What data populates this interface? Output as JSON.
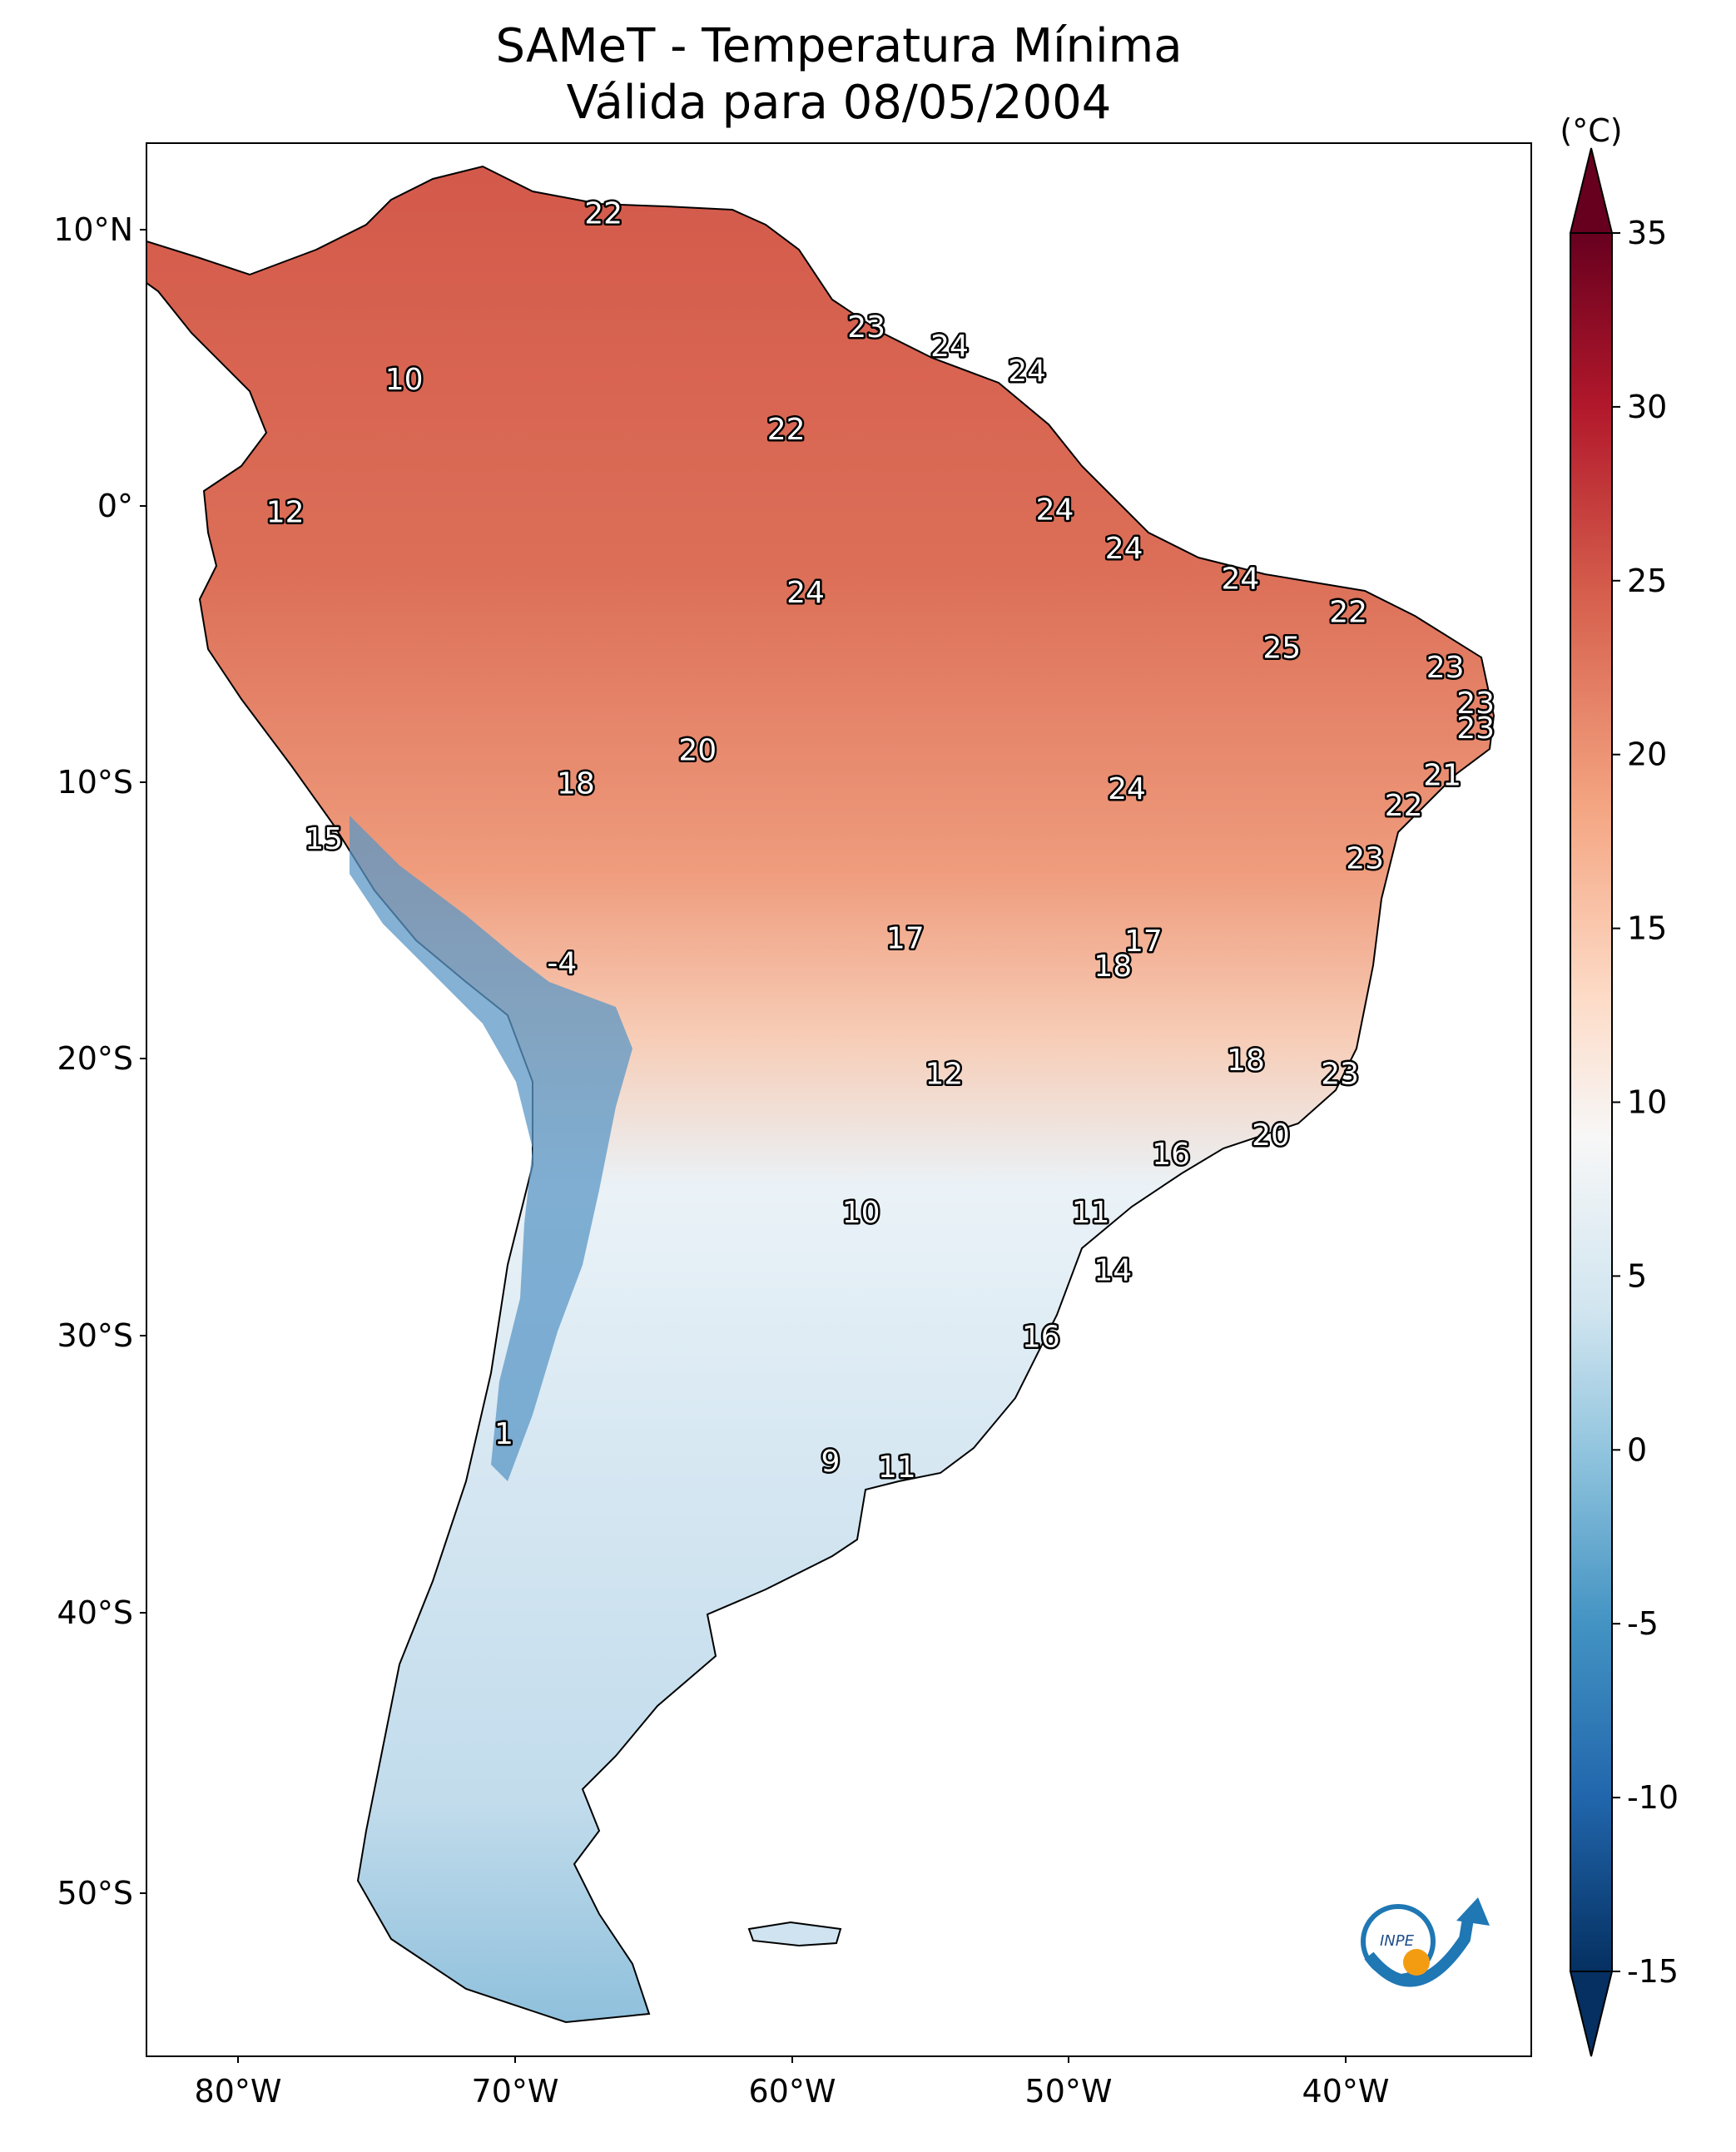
{
  "title_line1": "SAMeT - Temperatura Mínima",
  "title_line2": "Válida para 08/05/2004",
  "units": "(°C)",
  "lat_ticks": [
    "10°N",
    "0°",
    "10°S",
    "20°S",
    "30°S",
    "40°S",
    "50°S"
  ],
  "lon_ticks": [
    "80°W",
    "70°W",
    "60°W",
    "50°W",
    "40°W"
  ],
  "colorbar": {
    "ticks": [
      "35",
      "30",
      "25",
      "20",
      "15",
      "10",
      "5",
      "0",
      "-5",
      "-10",
      "-15"
    ],
    "colors": [
      "#67001f",
      "#b2182b",
      "#d6604d",
      "#f4a582",
      "#fddbc7",
      "#f7f7f7",
      "#d1e5f0",
      "#92c5de",
      "#4393c3",
      "#2166ac",
      "#053061"
    ]
  },
  "logo_text": "INPE",
  "temperature_labels": [
    {
      "value": "22",
      "lon": -66.8,
      "lat": 10.6
    },
    {
      "value": "23",
      "lon": -57.3,
      "lat": 6.5
    },
    {
      "value": "24",
      "lon": -54.3,
      "lat": 5.8
    },
    {
      "value": "24",
      "lon": -51.5,
      "lat": 4.9
    },
    {
      "value": "10",
      "lon": -74.0,
      "lat": 4.6
    },
    {
      "value": "22",
      "lon": -60.2,
      "lat": 2.8
    },
    {
      "value": "12",
      "lon": -78.3,
      "lat": -0.2
    },
    {
      "value": "24",
      "lon": -50.5,
      "lat": -0.1
    },
    {
      "value": "24",
      "lon": -48.0,
      "lat": -1.5
    },
    {
      "value": "24",
      "lon": -59.5,
      "lat": -3.1
    },
    {
      "value": "24",
      "lon": -43.8,
      "lat": -2.6
    },
    {
      "value": "22",
      "lon": -39.9,
      "lat": -3.8
    },
    {
      "value": "25",
      "lon": -42.3,
      "lat": -5.1
    },
    {
      "value": "23",
      "lon": -36.4,
      "lat": -5.8
    },
    {
      "value": "23",
      "lon": -35.3,
      "lat": -7.1
    },
    {
      "value": "23",
      "lon": -35.3,
      "lat": -8.0
    },
    {
      "value": "20",
      "lon": -63.4,
      "lat": -8.8
    },
    {
      "value": "18",
      "lon": -67.8,
      "lat": -10.0
    },
    {
      "value": "24",
      "lon": -47.9,
      "lat": -10.2
    },
    {
      "value": "21",
      "lon": -36.5,
      "lat": -9.7
    },
    {
      "value": "22",
      "lon": -37.9,
      "lat": -10.8
    },
    {
      "value": "15",
      "lon": -76.9,
      "lat": -12.0
    },
    {
      "value": "23",
      "lon": -39.3,
      "lat": -12.7
    },
    {
      "value": "17",
      "lon": -55.9,
      "lat": -15.6
    },
    {
      "value": "17",
      "lon": -47.3,
      "lat": -15.7
    },
    {
      "value": "18",
      "lon": -48.4,
      "lat": -16.6
    },
    {
      "value": "-4",
      "lon": -68.3,
      "lat": -16.5
    },
    {
      "value": "12",
      "lon": -54.5,
      "lat": -20.5
    },
    {
      "value": "18",
      "lon": -43.6,
      "lat": -20.0
    },
    {
      "value": "23",
      "lon": -40.2,
      "lat": -20.5
    },
    {
      "value": "20",
      "lon": -42.7,
      "lat": -22.7
    },
    {
      "value": "16",
      "lon": -46.3,
      "lat": -23.4
    },
    {
      "value": "10",
      "lon": -57.5,
      "lat": -25.5
    },
    {
      "value": "11",
      "lon": -49.2,
      "lat": -25.5
    },
    {
      "value": "14",
      "lon": -48.4,
      "lat": -27.6
    },
    {
      "value": "16",
      "lon": -51.0,
      "lat": -30.0
    },
    {
      "value": "1",
      "lon": -70.4,
      "lat": -33.5
    },
    {
      "value": "9",
      "lon": -58.6,
      "lat": -34.5
    },
    {
      "value": "11",
      "lon": -56.2,
      "lat": -34.7
    }
  ]
}
